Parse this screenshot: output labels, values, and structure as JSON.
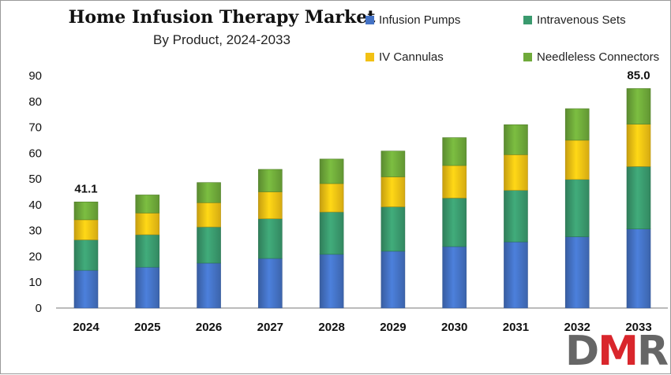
{
  "chart_data": {
    "type": "bar",
    "stacked": true,
    "title": "Home Infusion Therapy Market",
    "subtitle": "By Product, 2024-2033",
    "categories": [
      "2024",
      "2025",
      "2026",
      "2027",
      "2028",
      "2029",
      "2030",
      "2031",
      "2032",
      "2033"
    ],
    "series": [
      {
        "name": "Infusion Pumps",
        "color": "#4472c4",
        "values": [
          14.6,
          15.8,
          17.4,
          19.2,
          20.8,
          22.0,
          23.8,
          25.6,
          27.6,
          30.6
        ]
      },
      {
        "name": "Intravenous Sets",
        "color": "#3a9a6e",
        "values": [
          11.8,
          12.6,
          14.0,
          15.4,
          16.4,
          17.2,
          18.8,
          20.0,
          22.2,
          24.2
        ]
      },
      {
        "name": "IV Cannulas",
        "color": "#f2c114",
        "values": [
          7.8,
          8.4,
          9.4,
          10.4,
          11.0,
          11.6,
          12.6,
          13.8,
          15.2,
          16.4
        ]
      },
      {
        "name": "Needleless Connectors",
        "color": "#6faa3a",
        "values": [
          6.9,
          7.0,
          7.8,
          8.7,
          9.5,
          10.0,
          10.8,
          11.6,
          12.2,
          13.8
        ]
      }
    ],
    "total_labels": [
      {
        "category": "2024",
        "text": "41.1"
      },
      {
        "category": "2033",
        "text": "85.0"
      }
    ],
    "ylim": [
      0,
      90
    ],
    "yticks": [
      0,
      10,
      20,
      30,
      40,
      50,
      60,
      70,
      80,
      90
    ],
    "grid": false,
    "legend_position": "top-right"
  },
  "logo": {
    "text": "DMR",
    "colors": [
      "#666666",
      "#d9262c",
      "#666666"
    ]
  }
}
